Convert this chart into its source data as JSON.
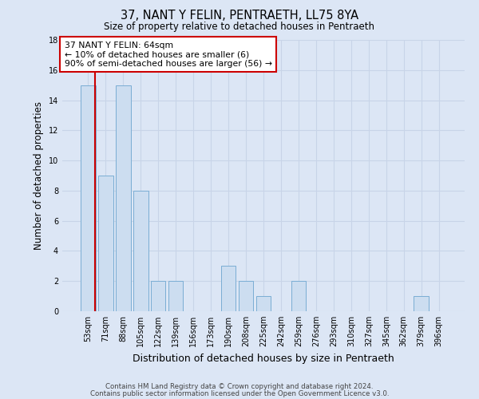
{
  "title": "37, NANT Y FELIN, PENTRAETH, LL75 8YA",
  "subtitle": "Size of property relative to detached houses in Pentraeth",
  "xlabel": "Distribution of detached houses by size in Pentraeth",
  "ylabel": "Number of detached properties",
  "categories": [
    "53sqm",
    "71sqm",
    "88sqm",
    "105sqm",
    "122sqm",
    "139sqm",
    "156sqm",
    "173sqm",
    "190sqm",
    "208sqm",
    "225sqm",
    "242sqm",
    "259sqm",
    "276sqm",
    "293sqm",
    "310sqm",
    "327sqm",
    "345sqm",
    "362sqm",
    "379sqm",
    "396sqm"
  ],
  "values": [
    15,
    9,
    15,
    8,
    2,
    2,
    0,
    0,
    3,
    2,
    1,
    0,
    2,
    0,
    0,
    0,
    0,
    0,
    0,
    1,
    0
  ],
  "bar_color": "#ccddf0",
  "bar_edge_color": "#7aadd4",
  "marker_color": "#cc0000",
  "annotation_text": "37 NANT Y FELIN: 64sqm\n← 10% of detached houses are smaller (6)\n90% of semi-detached houses are larger (56) →",
  "annotation_box_color": "#ffffff",
  "annotation_box_edge": "#cc0000",
  "ylim": [
    0,
    18
  ],
  "yticks": [
    0,
    2,
    4,
    6,
    8,
    10,
    12,
    14,
    16,
    18
  ],
  "footer_line1": "Contains HM Land Registry data © Crown copyright and database right 2024.",
  "footer_line2": "Contains public sector information licensed under the Open Government Licence v3.0.",
  "grid_color": "#c8d4e8",
  "background_color": "#dce6f5",
  "plot_background": "#dce6f5"
}
